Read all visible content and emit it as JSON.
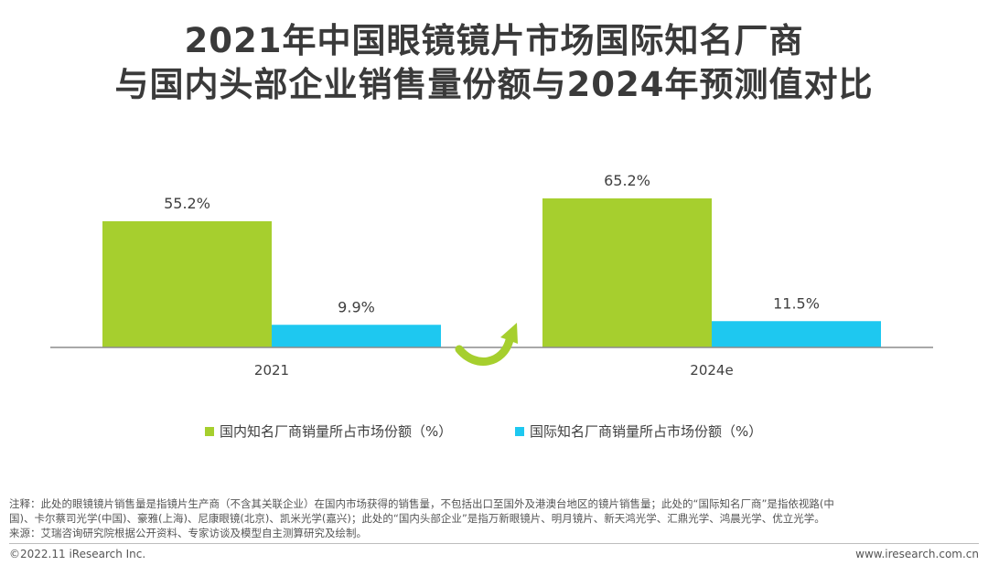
{
  "title": {
    "line1": "2021年中国眼镜镜片市场国际知名厂商",
    "line2": "与国内头部企业销售量份额与2024年预测值对比"
  },
  "chart_data": {
    "type": "bar",
    "categories": [
      "2021",
      "2024e"
    ],
    "series": [
      {
        "name": "国内知名厂商销量所占市场份额（%）",
        "values": [
          55.2,
          65.2
        ],
        "color": "#a6cf2e"
      },
      {
        "name": "国际知名厂商销量所占市场份额（%）",
        "values": [
          9.9,
          11.5
        ],
        "color": "#1ec8f0"
      }
    ],
    "data_labels": [
      [
        "55.2%",
        "65.2%"
      ],
      [
        "9.9%",
        "11.5%"
      ]
    ],
    "ylim": [
      0,
      80
    ],
    "legend": "bottom",
    "grid": false,
    "annotation": "arrow-up"
  },
  "notes": {
    "line1": "注释：此处的眼镜镜片销售量是指镜片生产商（不含其关联企业）在国内市场获得的销售量，不包括出口至国外及港澳台地区的镜片销售量；此处的“国际知名厂商”是指依视路(中",
    "line2": "国)、卡尔蔡司光学(中国)、豪雅(上海)、尼康眼镜(北京)、凯米光学(嘉兴)；此处的“国内头部企业”是指万新眼镜片、明月镜片、新天鸿光学、汇鼎光学、鸿晨光学、优立光学。",
    "line3": "来源：艾瑞咨询研究院根据公开资料、专家访谈及模型自主测算研究及绘制。"
  },
  "footer": {
    "copyright": "©2022.11 iResearch Inc.",
    "website": "www.iresearch.com.cn"
  }
}
